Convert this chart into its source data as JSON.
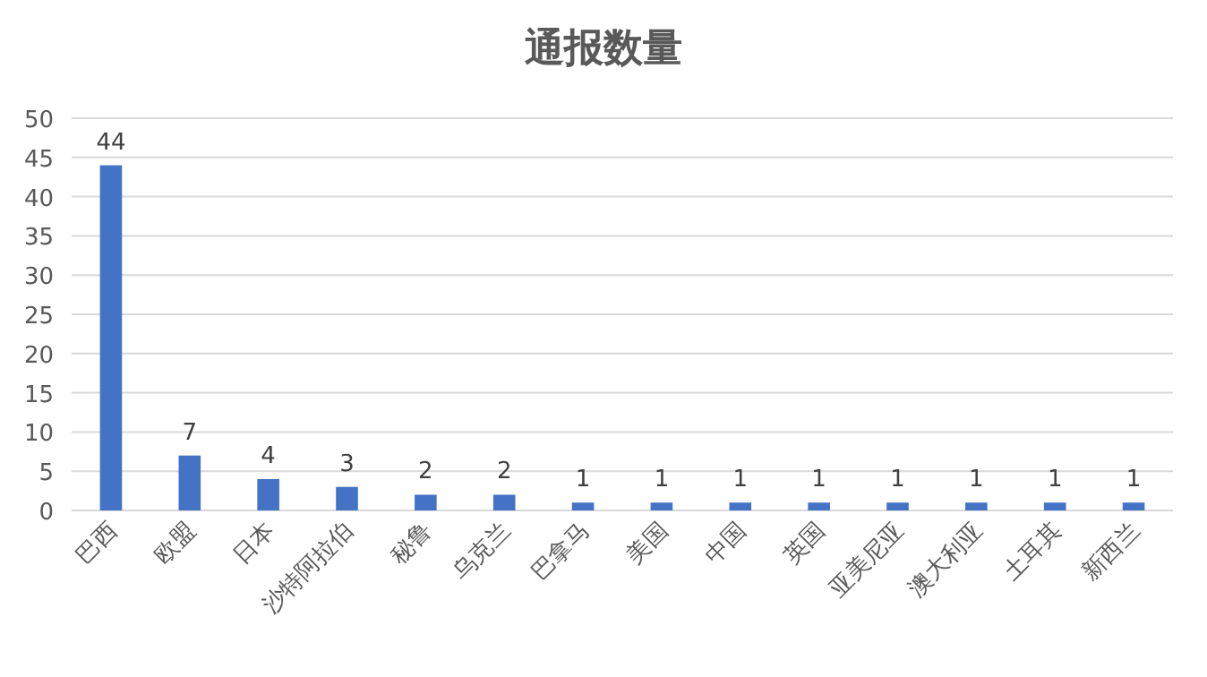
{
  "chart_data": {
    "type": "bar",
    "title": "通报数量",
    "categories": [
      "巴西",
      "欧盟",
      "日本",
      "沙特阿拉伯",
      "秘鲁",
      "乌克兰",
      "巴拿马",
      "美国",
      "中国",
      "英国",
      "亚美尼亚",
      "澳大利亚",
      "土耳其",
      "新西兰"
    ],
    "values": [
      44,
      7,
      4,
      3,
      2,
      2,
      1,
      1,
      1,
      1,
      1,
      1,
      1,
      1
    ],
    "color": "#4472c4",
    "ylim": [
      0,
      50
    ],
    "yticks": [
      0,
      5,
      10,
      15,
      20,
      25,
      30,
      35,
      40,
      45,
      50
    ],
    "grid": "y",
    "data_labels": true
  }
}
